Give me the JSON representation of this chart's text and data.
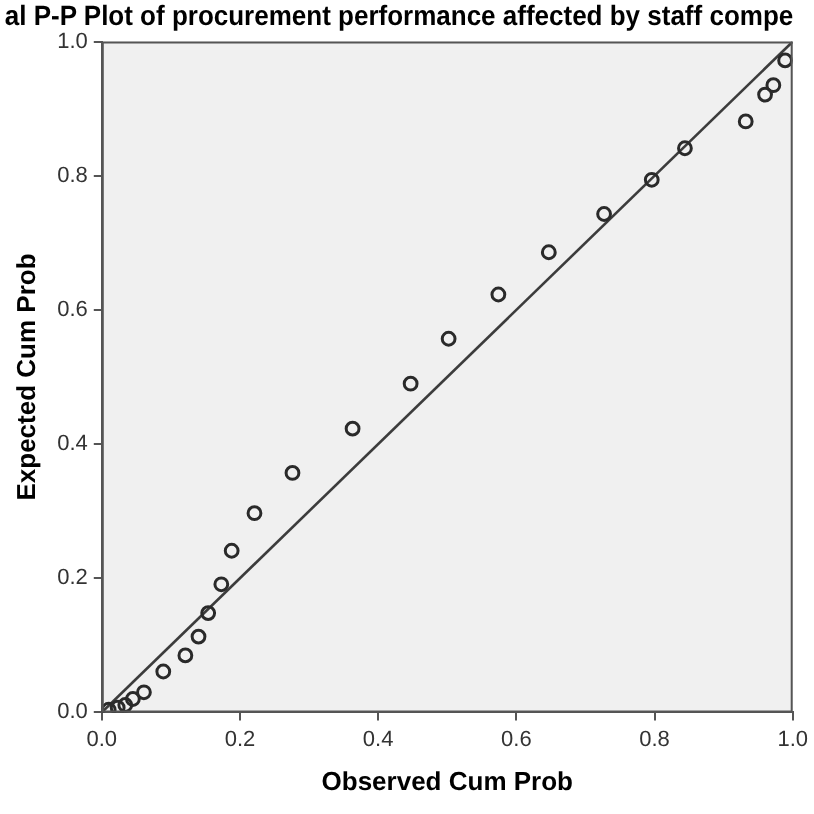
{
  "chart_data": {
    "type": "scatter",
    "title": "al P-P Plot of procurement performance affected by staff compe",
    "xlabel": "Observed Cum Prob",
    "ylabel": "Expected Cum Prob",
    "xlim": [
      0,
      1
    ],
    "ylim": [
      0,
      1
    ],
    "xticks": [
      {
        "value": 0,
        "label": "0.0"
      },
      {
        "value": 0.2,
        "label": "0.2"
      },
      {
        "value": 0.4,
        "label": "0.4"
      },
      {
        "value": 0.6,
        "label": "0.6"
      },
      {
        "value": 0.8,
        "label": "0.8"
      },
      {
        "value": 1,
        "label": "1.0"
      }
    ],
    "yticks": [
      {
        "value": 0,
        "label": "0.0"
      },
      {
        "value": 0.2,
        "label": "0.2"
      },
      {
        "value": 0.4,
        "label": "0.4"
      },
      {
        "value": 0.6,
        "label": "0.6"
      },
      {
        "value": 0.8,
        "label": "0.8"
      },
      {
        "value": 1,
        "label": "1.0"
      }
    ],
    "grid": false,
    "legend": false,
    "marker": "circle",
    "series": [
      {
        "type": "line",
        "color": "#3c3c3c",
        "marker": "none",
        "line_style": "solid",
        "x": [
          0,
          1
        ],
        "values": [
          0,
          1
        ]
      },
      {
        "type": "scatter",
        "color": "#2a2a2a",
        "x": [
          0.01,
          0.023,
          0.034,
          0.045,
          0.061,
          0.089,
          0.121,
          0.14,
          0.154,
          0.173,
          0.188,
          0.221,
          0.276,
          0.363,
          0.447,
          0.502,
          0.574,
          0.647,
          0.727,
          0.796,
          0.844,
          0.932,
          0.96,
          0.972,
          0.989
        ],
        "values": [
          0.004,
          0.007,
          0.011,
          0.02,
          0.03,
          0.061,
          0.085,
          0.113,
          0.148,
          0.191,
          0.241,
          0.297,
          0.357,
          0.423,
          0.49,
          0.557,
          0.623,
          0.686,
          0.743,
          0.794,
          0.841,
          0.881,
          0.921,
          0.935,
          0.972
        ]
      }
    ]
  }
}
